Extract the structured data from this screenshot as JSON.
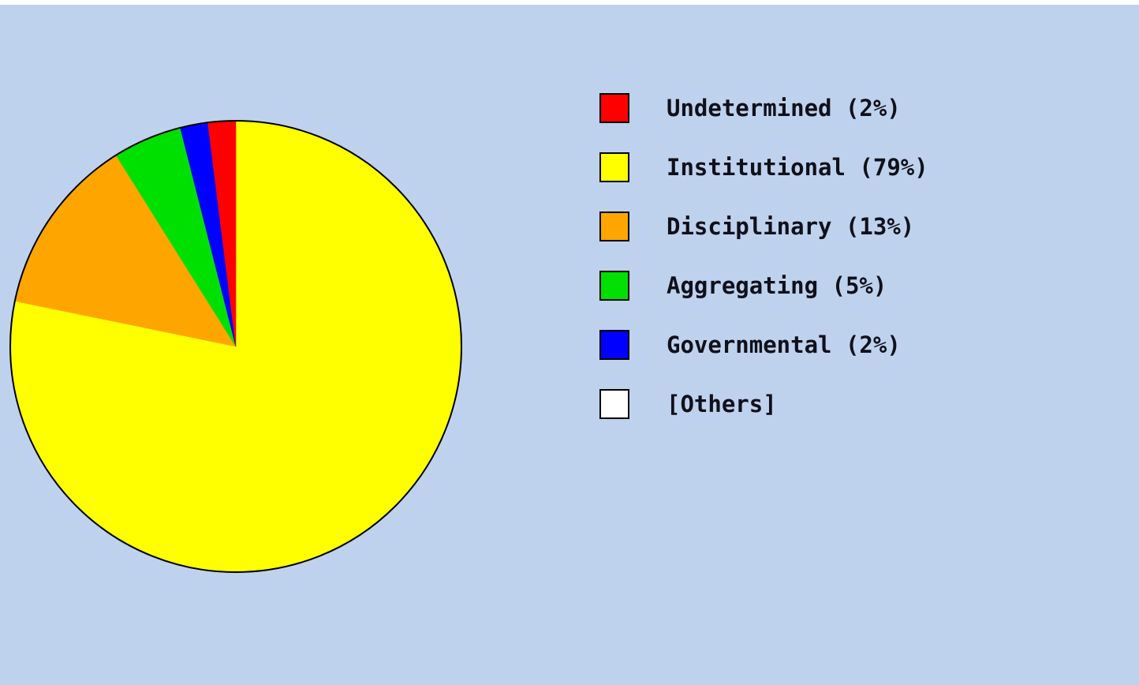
{
  "chart_data": {
    "type": "pie",
    "title": "",
    "start": "12 o'clock",
    "direction": "clockwise",
    "legend_placement": "right",
    "background_color": "#bed2ee",
    "slices": [
      {
        "label": "Institutional (79%)",
        "name": "Institutional",
        "value": 79,
        "color": "#ffff00"
      },
      {
        "label": "Disciplinary (13%)",
        "name": "Disciplinary",
        "value": 13,
        "color": "#ffa500"
      },
      {
        "label": "Aggregating (5%)",
        "name": "Aggregating",
        "value": 5,
        "color": "#00e000"
      },
      {
        "label": "Governmental (2%)",
        "name": "Governmental",
        "value": 2,
        "color": "#0000ff"
      },
      {
        "label": "Undetermined (2%)",
        "name": "Undetermined",
        "value": 2,
        "color": "#ff0000"
      }
    ],
    "legend": [
      {
        "label": "Undetermined (2%)",
        "color": "#ff0000"
      },
      {
        "label": "Institutional (79%)",
        "color": "#ffff00"
      },
      {
        "label": "Disciplinary (13%)",
        "color": "#ffa500"
      },
      {
        "label": "Aggregating (5%)",
        "color": "#00e000"
      },
      {
        "label": "Governmental (2%)",
        "color": "#0000ff"
      },
      {
        "label": "[Others]",
        "color": "#ffffff"
      }
    ]
  }
}
